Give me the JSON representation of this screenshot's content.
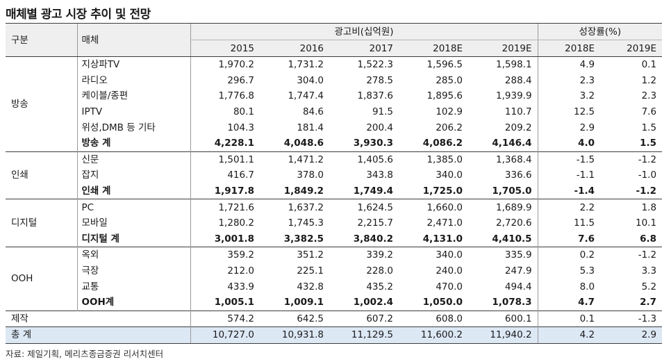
{
  "title": "매체별 광고 시장 추이 및 전망",
  "header": {
    "col_group": "구분",
    "col_media": "매체",
    "ad_spend_label": "광고비(십억원)",
    "growth_label": "성장률(%)",
    "years": [
      "2015",
      "2016",
      "2017",
      "2018E",
      "2019E"
    ],
    "growth_years": [
      "2018E",
      "2019E"
    ]
  },
  "groups": [
    {
      "name": "방송",
      "rows": [
        {
          "media": "지상파TV",
          "values": [
            "1,970.2",
            "1,731.2",
            "1,522.3",
            "1,596.5",
            "1,598.1"
          ],
          "growth": [
            "4.9",
            "0.1"
          ]
        },
        {
          "media": "라디오",
          "values": [
            "296.7",
            "304.0",
            "278.5",
            "285.0",
            "288.4"
          ],
          "growth": [
            "2.3",
            "1.2"
          ]
        },
        {
          "media": "케이블/종편",
          "values": [
            "1,776.8",
            "1,747.4",
            "1,837.6",
            "1,895.6",
            "1,939.9"
          ],
          "growth": [
            "3.2",
            "2.3"
          ]
        },
        {
          "media": "IPTV",
          "values": [
            "80.1",
            "84.6",
            "91.5",
            "102.9",
            "110.7"
          ],
          "growth": [
            "12.5",
            "7.6"
          ]
        },
        {
          "media": "위성,DMB 등 기타",
          "values": [
            "104.3",
            "181.4",
            "200.4",
            "206.2",
            "209.2"
          ],
          "growth": [
            "2.9",
            "1.5"
          ]
        }
      ],
      "subtotal": {
        "media": "방송 계",
        "values": [
          "4,228.1",
          "4,048.6",
          "3,930.3",
          "4,086.2",
          "4,146.4"
        ],
        "growth": [
          "4.0",
          "1.5"
        ]
      }
    },
    {
      "name": "인쇄",
      "rows": [
        {
          "media": "신문",
          "values": [
            "1,501.1",
            "1,471.2",
            "1,405.6",
            "1,385.0",
            "1,368.4"
          ],
          "growth": [
            "-1.5",
            "-1.2"
          ]
        },
        {
          "media": "잡지",
          "values": [
            "416.7",
            "378.0",
            "343.8",
            "340.0",
            "336.6"
          ],
          "growth": [
            "-1.1",
            "-1.0"
          ]
        }
      ],
      "subtotal": {
        "media": "인쇄 계",
        "values": [
          "1,917.8",
          "1,849.2",
          "1,749.4",
          "1,725.0",
          "1,705.0"
        ],
        "growth": [
          "-1.4",
          "-1.2"
        ]
      }
    },
    {
      "name": "디지털",
      "rows": [
        {
          "media": "PC",
          "values": [
            "1,721.6",
            "1,637.2",
            "1,624.5",
            "1,660.0",
            "1,689.9"
          ],
          "growth": [
            "2.2",
            "1.8"
          ]
        },
        {
          "media": "모바일",
          "values": [
            "1,280.2",
            "1,745.3",
            "2,215.7",
            "2,471.0",
            "2,720.6"
          ],
          "growth": [
            "11.5",
            "10.1"
          ]
        }
      ],
      "subtotal": {
        "media": "디지털 계",
        "values": [
          "3,001.8",
          "3,382.5",
          "3,840.2",
          "4,131.0",
          "4,410.5"
        ],
        "growth": [
          "7.6",
          "6.8"
        ]
      }
    },
    {
      "name": "OOH",
      "rows": [
        {
          "media": "옥외",
          "values": [
            "359.2",
            "351.2",
            "339.2",
            "340.0",
            "335.9"
          ],
          "growth": [
            "0.2",
            "-1.2"
          ]
        },
        {
          "media": "극장",
          "values": [
            "212.0",
            "225.1",
            "228.0",
            "240.0",
            "247.9"
          ],
          "growth": [
            "5.3",
            "3.3"
          ]
        },
        {
          "media": "교통",
          "values": [
            "433.9",
            "432.8",
            "435.2",
            "470.0",
            "494.4"
          ],
          "growth": [
            "8.0",
            "5.2"
          ]
        }
      ],
      "subtotal": {
        "media": "OOH계",
        "values": [
          "1,005.1",
          "1,009.1",
          "1,002.4",
          "1,050.0",
          "1,078.3"
        ],
        "growth": [
          "4.7",
          "2.7"
        ]
      }
    }
  ],
  "production": {
    "name": "제작",
    "values": [
      "574.2",
      "642.5",
      "607.2",
      "608.0",
      "600.1"
    ],
    "growth": [
      "0.1",
      "-1.3"
    ]
  },
  "total": {
    "name": "총 계",
    "values": [
      "10,727.0",
      "10,931.8",
      "11,129.5",
      "11,600.2",
      "11,940.2"
    ],
    "growth": [
      "4.2",
      "2.9"
    ]
  },
  "source": "자료: 제일기획, 메리츠종금증권 리서치센터"
}
